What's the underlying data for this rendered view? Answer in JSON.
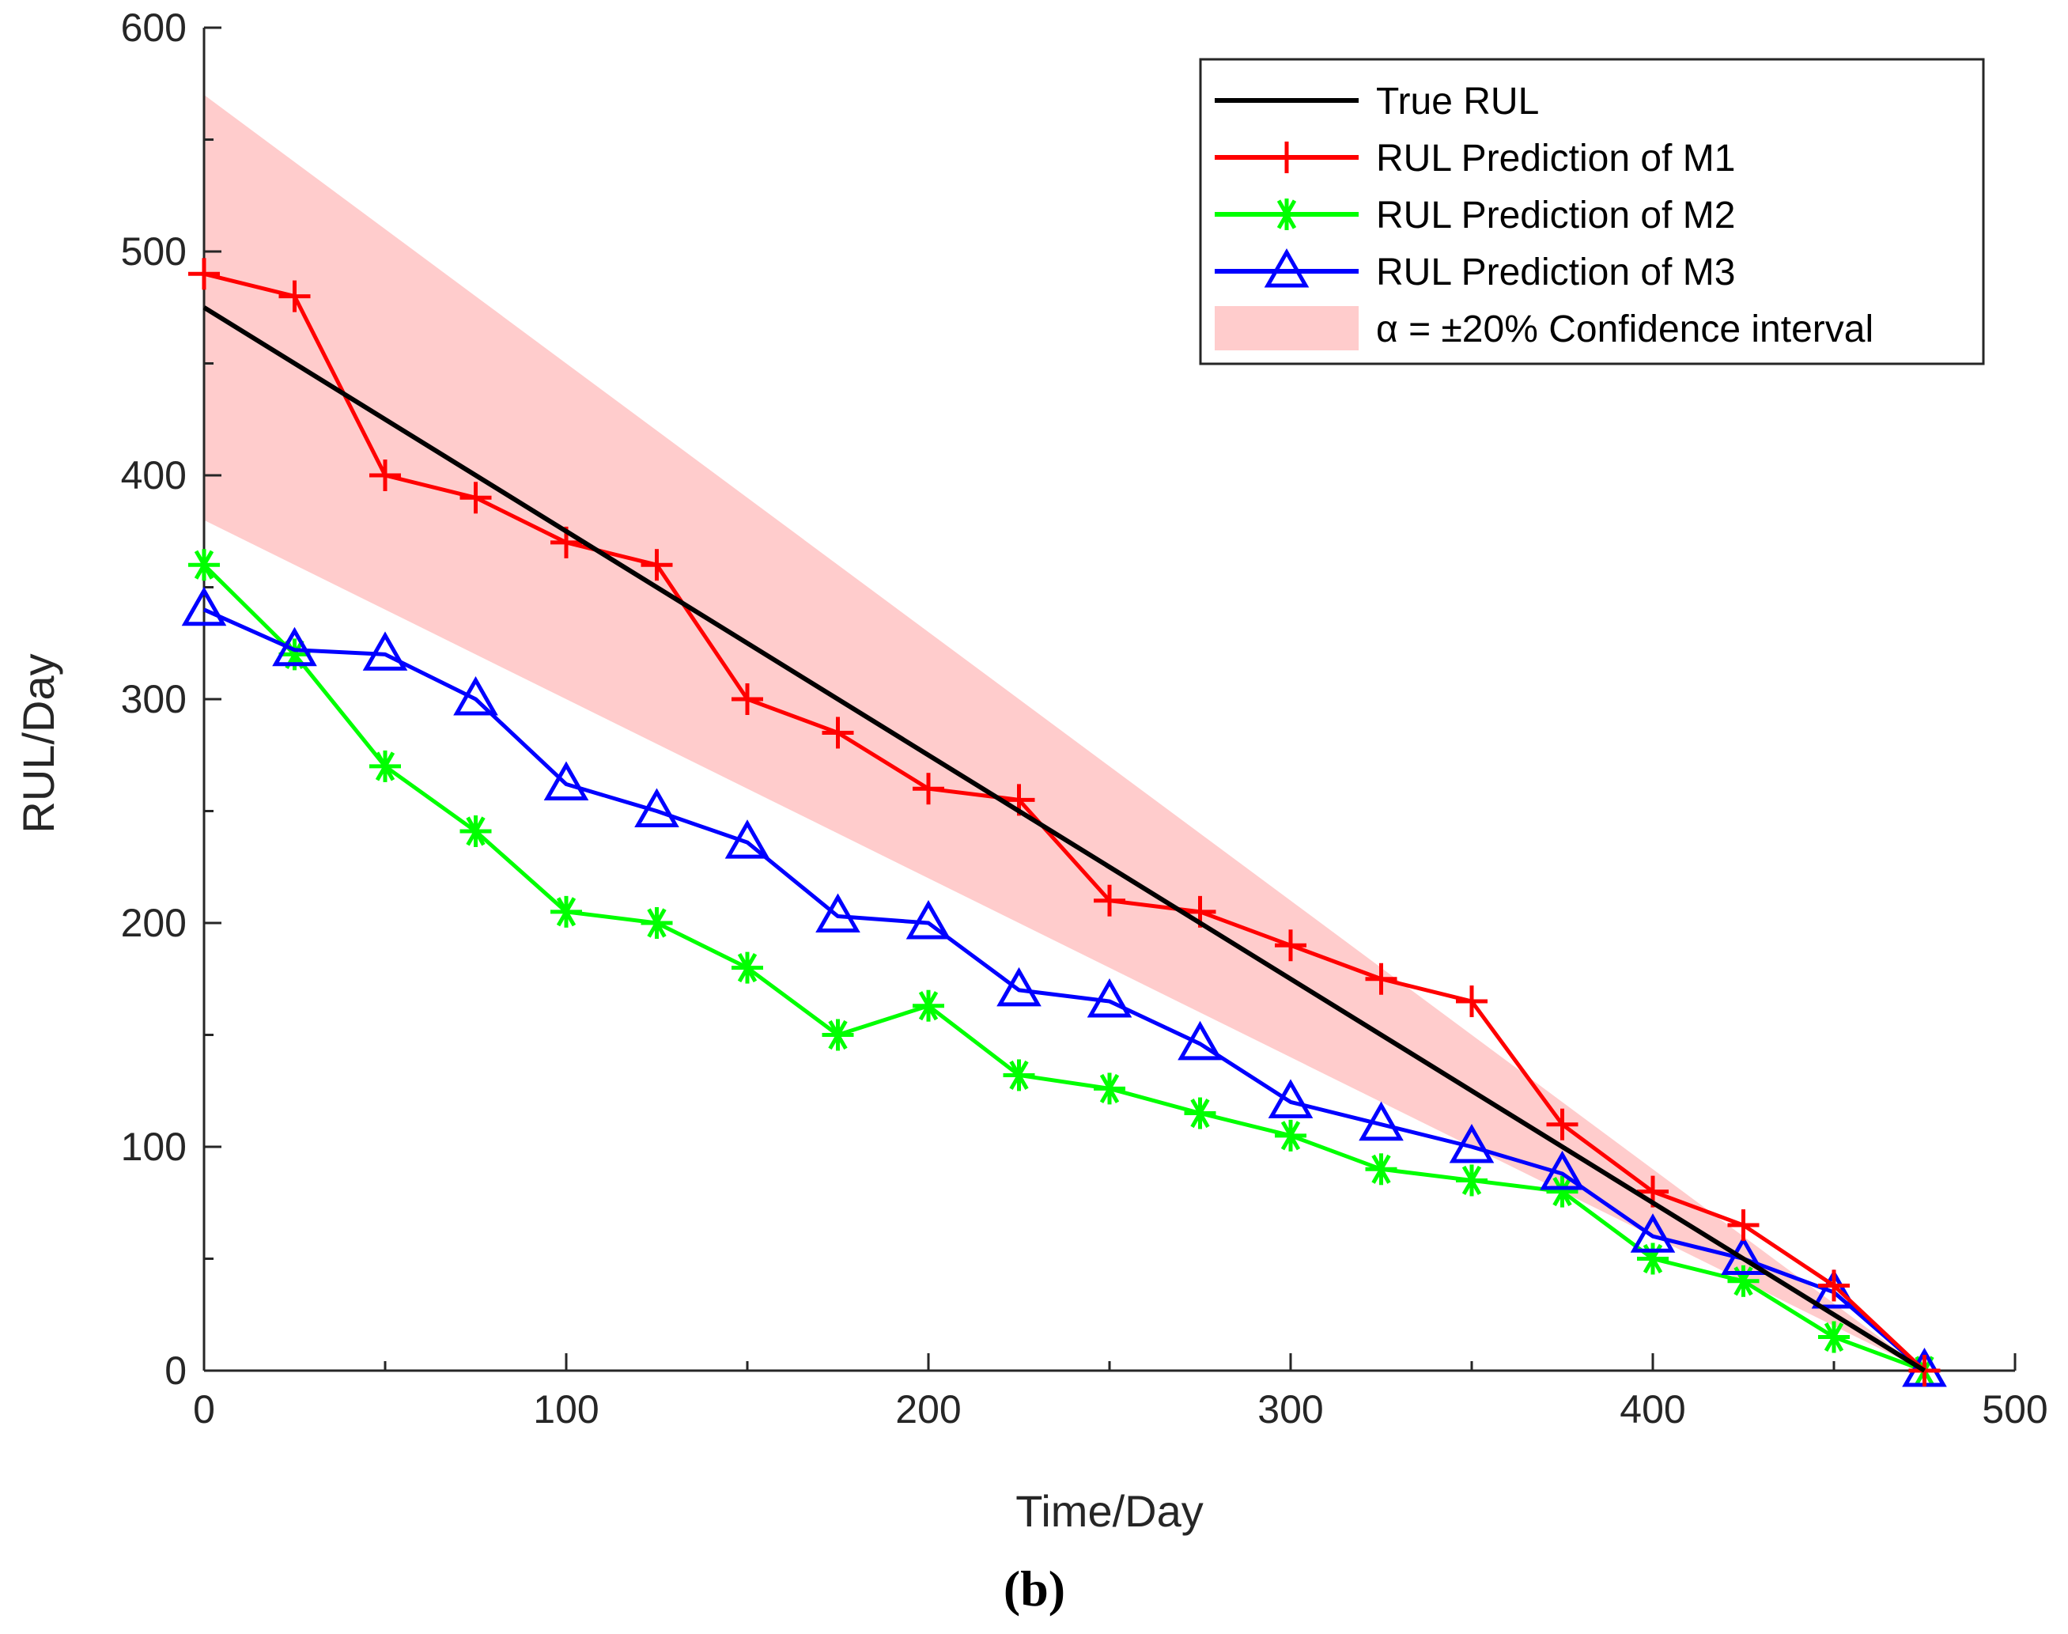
{
  "chart_data": {
    "type": "line",
    "xlabel": "Time/Day",
    "ylabel": "RUL/Day",
    "xlim": [
      0,
      500
    ],
    "ylim": [
      0,
      600
    ],
    "xticks": [
      0,
      100,
      200,
      300,
      400,
      500
    ],
    "yticks": [
      0,
      100,
      200,
      300,
      400,
      500,
      600
    ],
    "grid": false,
    "legend_position": "top-right",
    "caption": "(b)",
    "x": [
      0,
      25,
      50,
      75,
      100,
      125,
      150,
      175,
      200,
      225,
      250,
      275,
      300,
      325,
      350,
      375,
      400,
      425,
      450,
      475
    ],
    "band": {
      "name": "α = ±20% Confidence interval",
      "color": "#ffcccc",
      "x": [
        0,
        475
      ],
      "upper": [
        570,
        0
      ],
      "lower": [
        380,
        0
      ]
    },
    "series": [
      {
        "name": "True RUL",
        "color": "#000000",
        "marker": "none",
        "x": [
          0,
          475
        ],
        "values": [
          475,
          0
        ]
      },
      {
        "name": "RUL Prediction of M1",
        "color": "#ff0000",
        "marker": "plus",
        "values": [
          490,
          480,
          400,
          390,
          370,
          360,
          300,
          285,
          260,
          255,
          210,
          205,
          190,
          175,
          165,
          110,
          80,
          65,
          38,
          0
        ]
      },
      {
        "name": "RUL Prediction of M2",
        "color": "#00ff00",
        "marker": "asterisk",
        "values": [
          360,
          320,
          270,
          241,
          205,
          200,
          180,
          150,
          163,
          132,
          126,
          115,
          105,
          90,
          85,
          80,
          50,
          40,
          15,
          0
        ]
      },
      {
        "name": "RUL Prediction of M3",
        "color": "#0000ff",
        "marker": "triangle",
        "values": [
          340,
          322,
          320,
          300,
          262,
          250,
          236,
          203,
          200,
          170,
          165,
          146,
          120,
          110,
          100,
          88,
          60,
          50,
          35,
          0
        ]
      }
    ]
  }
}
